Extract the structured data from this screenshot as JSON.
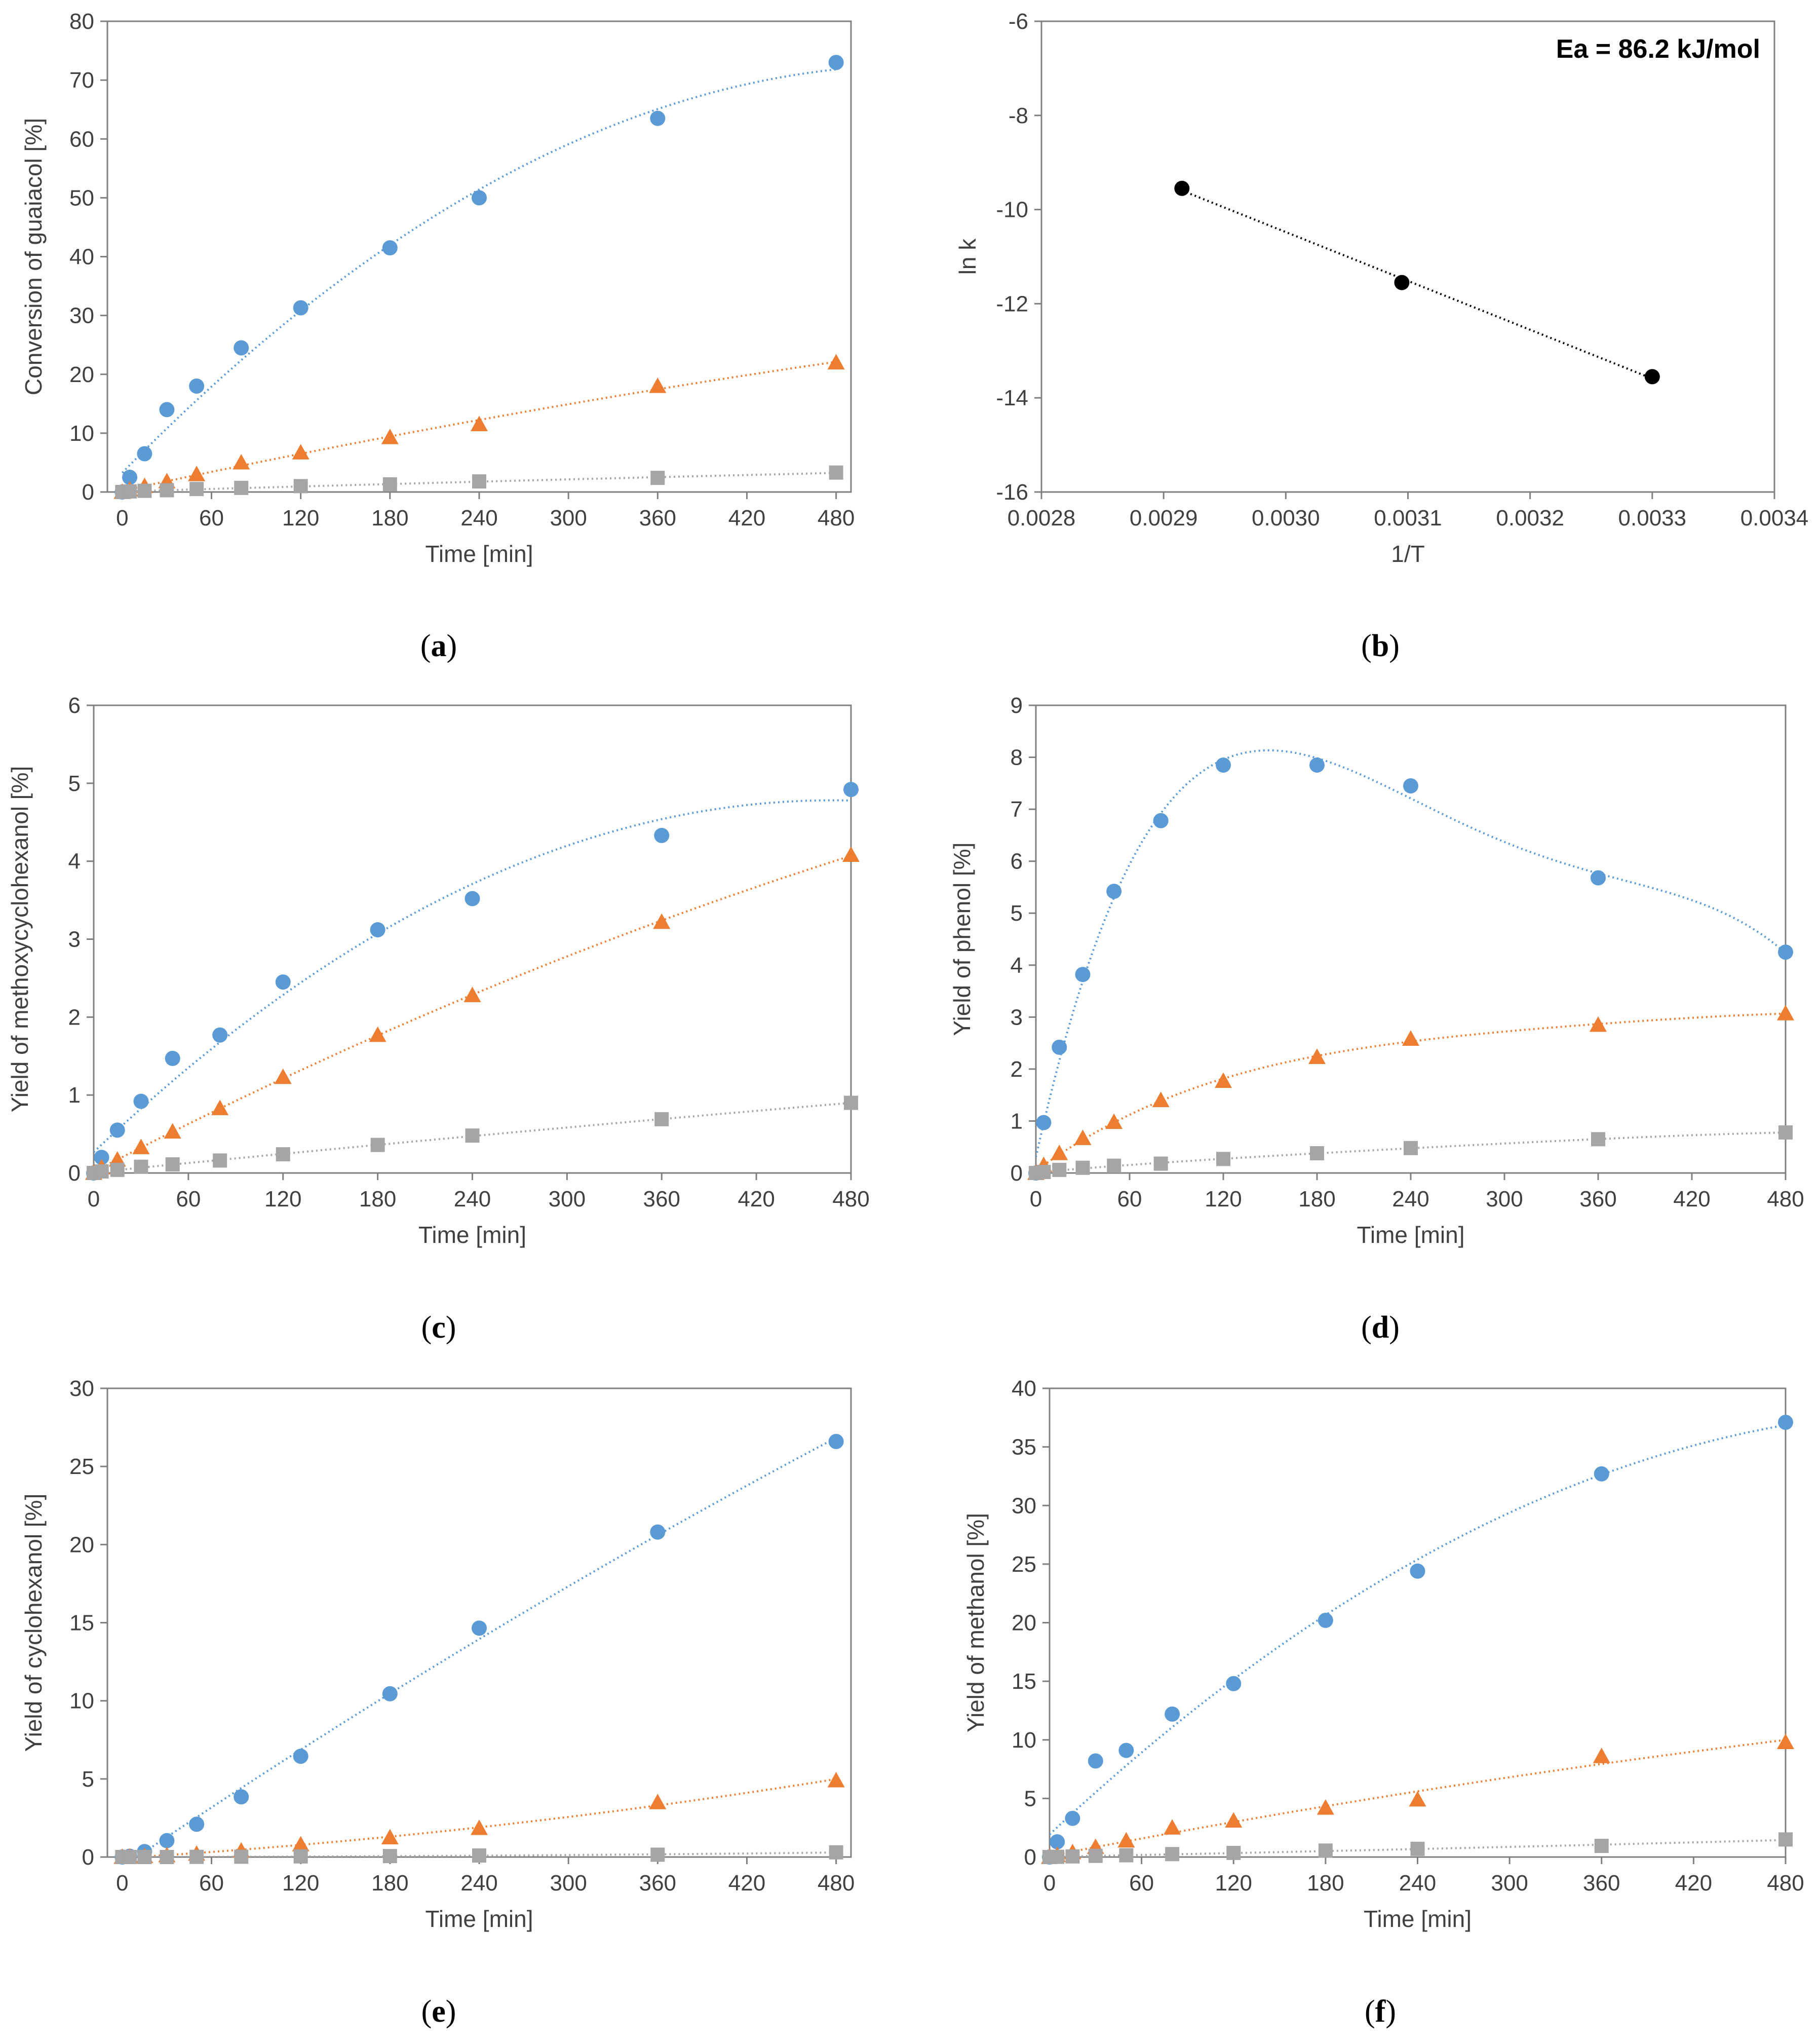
{
  "colors": {
    "series_blue": "#5b9bd5",
    "series_orange": "#ed7d31",
    "series_gray": "#a5a5a5",
    "black": "#000000",
    "axis": "#7f7f7f"
  },
  "chart_data": [
    {
      "id": "a",
      "type": "scatter",
      "caption_letter": "a",
      "title": "",
      "xlabel": "Time [min]",
      "ylabel": "Conversion of guaiacol [%]",
      "xlim": [
        -10,
        490
      ],
      "ylim": [
        0,
        80
      ],
      "xticks": [
        0,
        60,
        120,
        180,
        240,
        300,
        360,
        420,
        480
      ],
      "yticks": [
        0,
        10,
        20,
        30,
        40,
        50,
        60,
        70,
        80
      ],
      "trendline": "polynomial",
      "grid": false,
      "series": [
        {
          "marker": "circle",
          "color": "#5b9bd5",
          "x": [
            0,
            5,
            15,
            30,
            50,
            80,
            120,
            180,
            240,
            360,
            480
          ],
          "y": [
            0,
            2.5,
            6.5,
            14,
            18,
            24.5,
            31.3,
            41.5,
            50,
            63.5,
            73
          ]
        },
        {
          "marker": "triangle",
          "color": "#ed7d31",
          "x": [
            0,
            5,
            15,
            30,
            50,
            80,
            120,
            180,
            240,
            360,
            480
          ],
          "y": [
            0,
            0.4,
            1,
            1.8,
            3,
            5,
            6.7,
            9.3,
            11.5,
            18,
            22
          ]
        },
        {
          "marker": "square",
          "color": "#a5a5a5",
          "x": [
            0,
            5,
            15,
            30,
            50,
            80,
            120,
            180,
            240,
            360,
            480
          ],
          "y": [
            0,
            0.1,
            0.2,
            0.3,
            0.5,
            0.7,
            1,
            1.3,
            1.8,
            2.4,
            3.3
          ]
        }
      ]
    },
    {
      "id": "b",
      "type": "scatter",
      "caption_letter": "b",
      "title": "",
      "xlabel": "1/T",
      "ylabel": "ln k",
      "annotation": "Ea = 86.2 kJ/mol",
      "xlim": [
        0.0028,
        0.0034
      ],
      "ylim": [
        -16,
        -6
      ],
      "xticks": [
        "0.0028",
        "0.0029",
        "0.0030",
        "0.0031",
        "0.0032",
        "0.0033",
        "0.0034"
      ],
      "yticks": [
        -16,
        -14,
        -12,
        -10,
        -8,
        -6
      ],
      "trendline": "linear",
      "grid": false,
      "series": [
        {
          "marker": "circle",
          "color": "#000000",
          "x": [
            0.002915,
            0.003095,
            0.0033
          ],
          "y": [
            -9.55,
            -11.55,
            -13.55
          ]
        }
      ]
    },
    {
      "id": "c",
      "type": "scatter",
      "caption_letter": "c",
      "title": "",
      "xlabel": "Time [min]",
      "ylabel": "Yield of methoxycyclohexanol [%]",
      "xlim": [
        0,
        480
      ],
      "ylim": [
        0,
        6
      ],
      "xticks": [
        0,
        60,
        120,
        180,
        240,
        300,
        360,
        420,
        480
      ],
      "yticks": [
        0,
        1,
        2,
        3,
        4,
        5,
        6
      ],
      "trendline": "polynomial",
      "grid": false,
      "series": [
        {
          "marker": "circle",
          "color": "#5b9bd5",
          "x": [
            0,
            5,
            15,
            30,
            50,
            80,
            120,
            180,
            240,
            360,
            480
          ],
          "y": [
            0,
            0.2,
            0.55,
            0.92,
            1.47,
            1.77,
            2.45,
            3.12,
            3.52,
            4.33,
            4.92
          ]
        },
        {
          "marker": "triangle",
          "color": "#ed7d31",
          "x": [
            0,
            5,
            15,
            30,
            50,
            80,
            120,
            180,
            240,
            360,
            480
          ],
          "y": [
            0,
            0.07,
            0.17,
            0.33,
            0.53,
            0.83,
            1.23,
            1.77,
            2.28,
            3.22,
            4.08
          ]
        },
        {
          "marker": "square",
          "color": "#a5a5a5",
          "x": [
            0,
            5,
            15,
            30,
            50,
            80,
            120,
            180,
            240,
            360,
            480
          ],
          "y": [
            0,
            0.02,
            0.04,
            0.08,
            0.11,
            0.16,
            0.24,
            0.36,
            0.48,
            0.69,
            0.9
          ]
        }
      ]
    },
    {
      "id": "d",
      "type": "scatter",
      "caption_letter": "d",
      "title": "",
      "xlabel": "Time [min]",
      "ylabel": "Yield of phenol [%]",
      "xlim": [
        0,
        480
      ],
      "ylim": [
        0,
        9
      ],
      "xticks": [
        0,
        60,
        120,
        180,
        240,
        300,
        360,
        420,
        480
      ],
      "yticks": [
        0,
        1,
        2,
        3,
        4,
        5,
        6,
        7,
        8,
        9
      ],
      "trendline": "polynomial",
      "grid": false,
      "series": [
        {
          "marker": "circle",
          "color": "#5b9bd5",
          "x": [
            0,
            5,
            15,
            30,
            50,
            80,
            120,
            180,
            240,
            360,
            480
          ],
          "y": [
            0,
            0.97,
            2.42,
            3.82,
            5.42,
            6.78,
            7.85,
            7.85,
            7.45,
            5.68,
            4.25
          ]
        },
        {
          "marker": "triangle",
          "color": "#ed7d31",
          "x": [
            0,
            5,
            15,
            30,
            50,
            80,
            120,
            180,
            240,
            360,
            480
          ],
          "y": [
            0,
            0.15,
            0.38,
            0.67,
            0.98,
            1.4,
            1.77,
            2.23,
            2.58,
            2.85,
            3.07
          ]
        },
        {
          "marker": "square",
          "color": "#a5a5a5",
          "x": [
            0,
            5,
            15,
            30,
            50,
            80,
            120,
            180,
            240,
            360,
            480
          ],
          "y": [
            0,
            0.02,
            0.06,
            0.1,
            0.14,
            0.18,
            0.27,
            0.38,
            0.48,
            0.65,
            0.78
          ]
        }
      ]
    },
    {
      "id": "e",
      "type": "scatter",
      "caption_letter": "e",
      "title": "",
      "xlabel": "Time [min]",
      "ylabel": "Yield of cyclohexanol [%]",
      "xlim": [
        -10,
        490
      ],
      "ylim": [
        0,
        30
      ],
      "xticks": [
        0,
        60,
        120,
        180,
        240,
        300,
        360,
        420,
        480
      ],
      "yticks": [
        0,
        5,
        10,
        15,
        20,
        25,
        30
      ],
      "trendline": "polynomial",
      "grid": false,
      "series": [
        {
          "marker": "circle",
          "color": "#5b9bd5",
          "x": [
            0,
            5,
            15,
            30,
            50,
            80,
            120,
            180,
            240,
            360,
            480
          ],
          "y": [
            0,
            0.05,
            0.35,
            1.05,
            2.1,
            3.85,
            6.45,
            10.45,
            14.65,
            20.8,
            26.6
          ]
        },
        {
          "marker": "triangle",
          "color": "#ed7d31",
          "x": [
            0,
            5,
            15,
            30,
            50,
            80,
            120,
            180,
            240,
            360,
            480
          ],
          "y": [
            0,
            0.02,
            0.05,
            0.1,
            0.2,
            0.4,
            0.8,
            1.25,
            1.85,
            3.5,
            4.9
          ]
        },
        {
          "marker": "square",
          "color": "#a5a5a5",
          "x": [
            0,
            5,
            15,
            30,
            50,
            80,
            120,
            180,
            240,
            360,
            480
          ],
          "y": [
            0,
            0,
            0,
            0,
            0.01,
            0.02,
            0.04,
            0.06,
            0.1,
            0.15,
            0.3
          ]
        }
      ]
    },
    {
      "id": "f",
      "type": "scatter",
      "caption_letter": "f",
      "title": "",
      "xlabel": "Time [min]",
      "ylabel": "Yield of methanol [%]",
      "xlim": [
        0,
        480
      ],
      "ylim": [
        0,
        40
      ],
      "xticks": [
        0,
        60,
        120,
        180,
        240,
        300,
        360,
        420,
        480
      ],
      "yticks": [
        0,
        5,
        10,
        15,
        20,
        25,
        30,
        35,
        40
      ],
      "trendline": "polynomial",
      "grid": false,
      "series": [
        {
          "marker": "circle",
          "color": "#5b9bd5",
          "x": [
            0,
            5,
            15,
            30,
            50,
            80,
            120,
            180,
            240,
            360,
            480
          ],
          "y": [
            0,
            1.3,
            3.3,
            8.2,
            9.1,
            12.2,
            14.8,
            20.2,
            24.4,
            32.7,
            37.1
          ]
        },
        {
          "marker": "triangle",
          "color": "#ed7d31",
          "x": [
            0,
            5,
            15,
            30,
            50,
            80,
            120,
            180,
            240,
            360,
            480
          ],
          "y": [
            0,
            0.15,
            0.4,
            0.85,
            1.4,
            2.5,
            3.1,
            4.2,
            4.9,
            8.6,
            9.8
          ]
        },
        {
          "marker": "square",
          "color": "#a5a5a5",
          "x": [
            0,
            5,
            15,
            30,
            50,
            80,
            120,
            180,
            240,
            360,
            480
          ],
          "y": [
            0,
            0.02,
            0.05,
            0.1,
            0.15,
            0.25,
            0.35,
            0.55,
            0.7,
            0.95,
            1.5
          ]
        }
      ]
    }
  ]
}
